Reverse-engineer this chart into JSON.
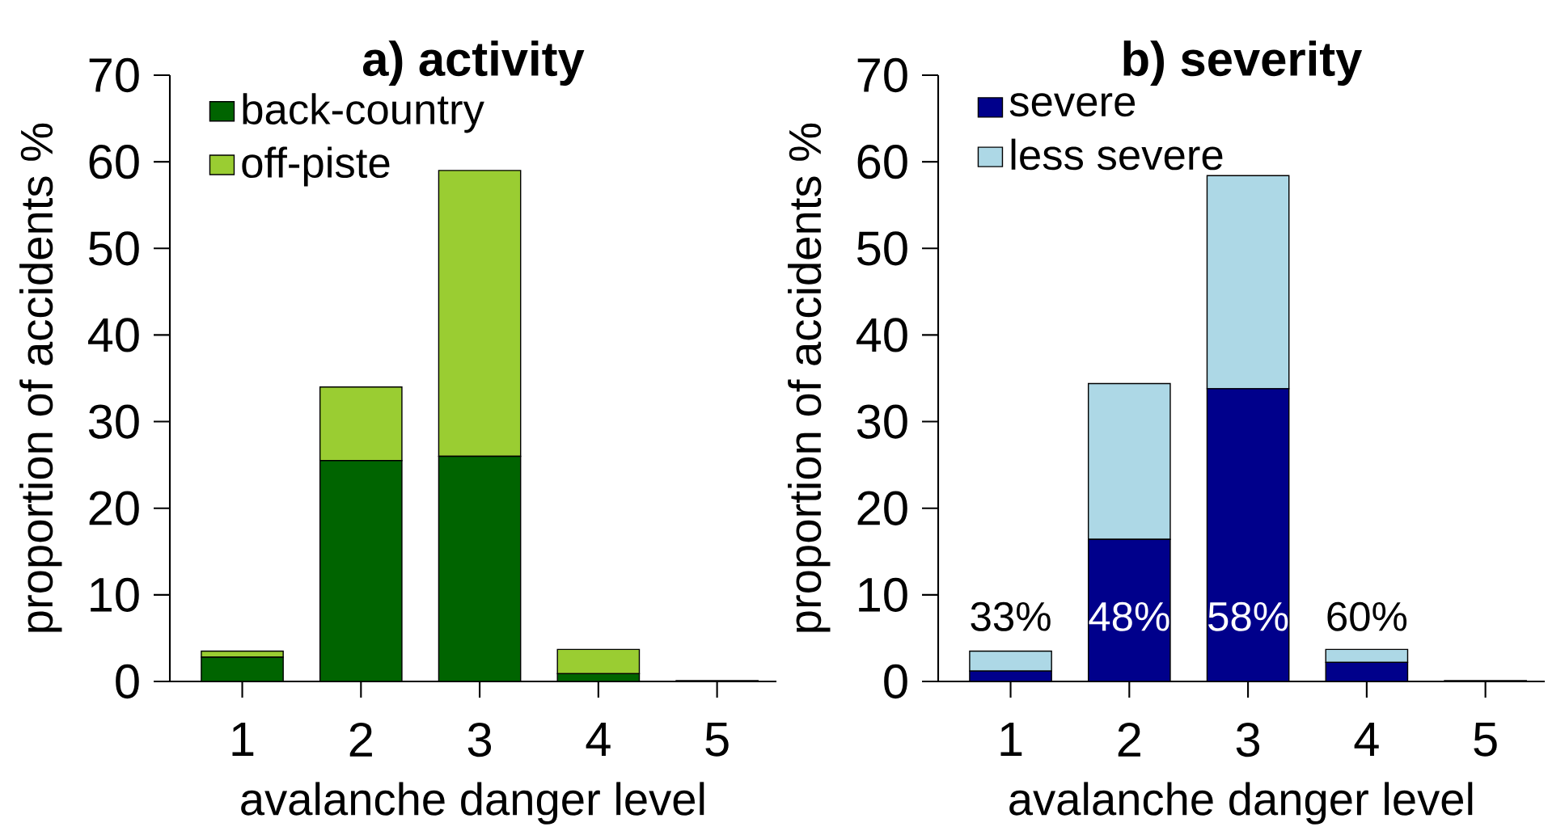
{
  "chart_data": [
    {
      "type": "bar",
      "title": "a) activity",
      "xlabel": "avalanche danger level",
      "ylabel": "proportion of accidents %",
      "categories": [
        "1",
        "2",
        "3",
        "4",
        "5"
      ],
      "stacked": true,
      "legend": "top left",
      "ylim": [
        0,
        70
      ],
      "yticks": [
        0,
        10,
        20,
        30,
        40,
        50,
        60,
        70
      ],
      "series": [
        {
          "name": "back-country",
          "color": "#006400",
          "values": [
            2.8,
            25.5,
            26,
            0.9,
            0.1
          ]
        },
        {
          "name": "off-piste",
          "color": "#9acd32",
          "values": [
            0.7,
            8.5,
            33,
            2.8,
            0
          ]
        }
      ]
    },
    {
      "type": "bar",
      "title": "b) severity",
      "xlabel": "avalanche danger level",
      "ylabel": "proportion of accidents %",
      "categories": [
        "1",
        "2",
        "3",
        "4",
        "5"
      ],
      "stacked": true,
      "legend": "top left",
      "ylim": [
        0,
        70
      ],
      "yticks": [
        0,
        10,
        20,
        30,
        40,
        50,
        60,
        70
      ],
      "series": [
        {
          "name": "severe",
          "color": "#00008b",
          "values": [
            1.2,
            16.4,
            33.8,
            2.2,
            0.1
          ]
        },
        {
          "name": "less severe",
          "color": "#add8e6",
          "values": [
            2.3,
            18,
            24.6,
            1.5,
            0
          ]
        }
      ],
      "annotations": [
        "33%",
        "48%",
        "58%",
        "60%"
      ]
    }
  ]
}
